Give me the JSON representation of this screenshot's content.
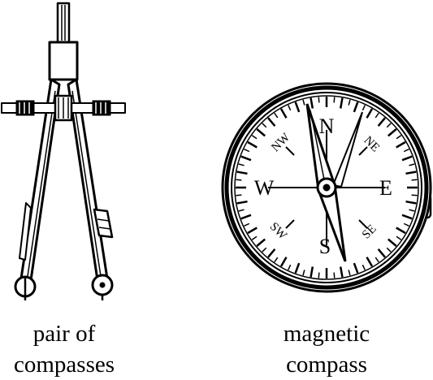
{
  "left_caption": {
    "line1": "pair of",
    "line2": "compasses"
  },
  "right_caption": {
    "line1": "magnetic",
    "line2": "compass"
  },
  "compass_rose": {
    "cardinals": {
      "n": "N",
      "e": "E",
      "s": "S",
      "w": "W"
    },
    "intercardinals": {
      "ne": "NE",
      "se": "SE",
      "sw": "SW",
      "nw": "NW"
    }
  },
  "colors": {
    "ink": "#000000",
    "paper": "#ffffff"
  }
}
